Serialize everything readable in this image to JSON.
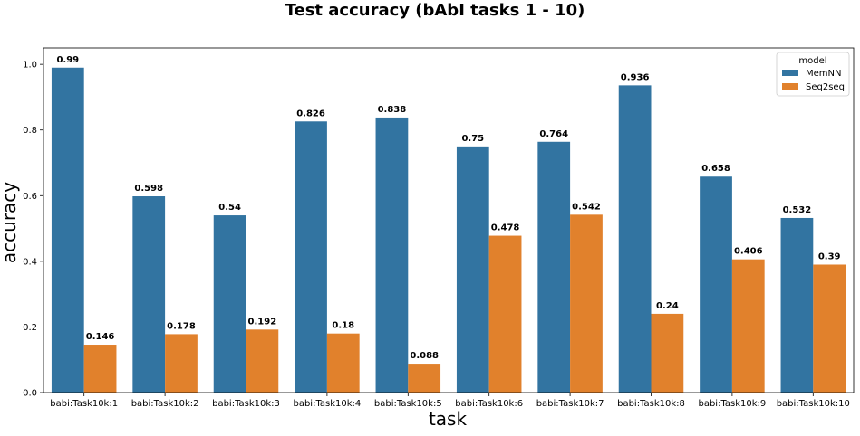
{
  "chart_data": {
    "type": "bar",
    "title": "Test accuracy (bAbI tasks 1 - 10)",
    "xlabel": "task",
    "ylabel": "accuracy",
    "ylim": [
      0,
      1.05
    ],
    "yticks": [
      "0.0",
      "0.2",
      "0.4",
      "0.6",
      "0.8",
      "1.0"
    ],
    "categories": [
      "babi:Task10k:1",
      "babi:Task10k:2",
      "babi:Task10k:3",
      "babi:Task10k:4",
      "babi:Task10k:5",
      "babi:Task10k:6",
      "babi:Task10k:7",
      "babi:Task10k:8",
      "babi:Task10k:9",
      "babi:Task10k:10"
    ],
    "legend_title": "model",
    "legend_position": "top-right",
    "grid": false,
    "series": [
      {
        "name": "MemNN",
        "color": "#3274a1",
        "values": [
          0.99,
          0.598,
          0.54,
          0.826,
          0.838,
          0.75,
          0.764,
          0.936,
          0.658,
          0.532
        ],
        "labels": [
          "0.99",
          "0.598",
          "0.54",
          "0.826",
          "0.838",
          "0.75",
          "0.764",
          "0.936",
          "0.658",
          "0.532"
        ]
      },
      {
        "name": "Seq2seq",
        "color": "#e1812c",
        "values": [
          0.146,
          0.178,
          0.192,
          0.18,
          0.088,
          0.478,
          0.542,
          0.24,
          0.406,
          0.39
        ],
        "labels": [
          "0.146",
          "0.178",
          "0.192",
          "0.18",
          "0.088",
          "0.478",
          "0.542",
          "0.24",
          "0.406",
          "0.39"
        ]
      }
    ]
  }
}
